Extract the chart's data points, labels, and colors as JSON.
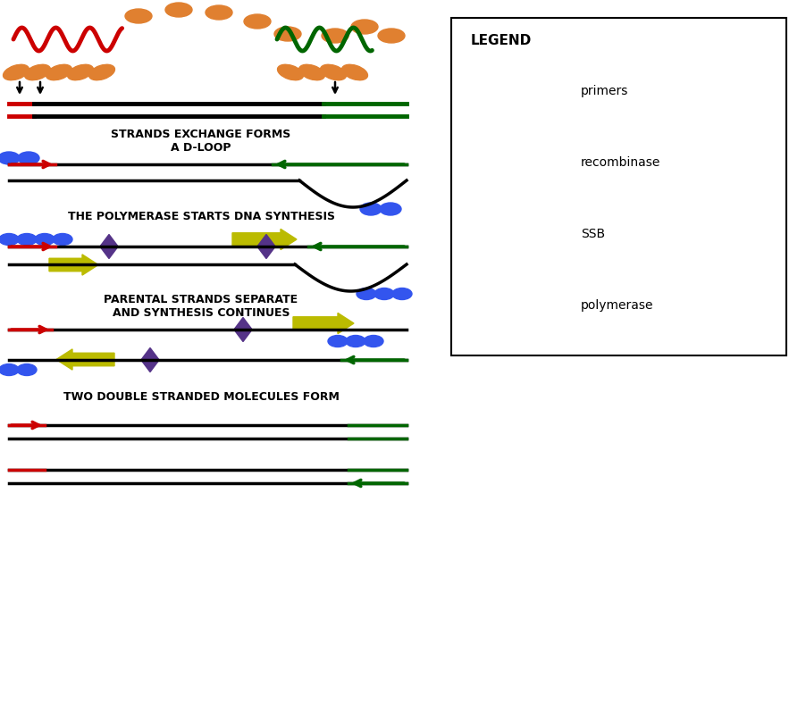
{
  "fig_width": 9.02,
  "fig_height": 7.86,
  "bg_color": "#ffffff",
  "red_color": "#cc0000",
  "green_color": "#006600",
  "black_color": "#000000",
  "orange_color": "#e08030",
  "blue_color": "#3355ee",
  "yellow_color": "#bbbb00",
  "purple_color": "#553388",
  "legend_title": "LEGEND",
  "legend_labels": [
    "primers",
    "recombinase",
    "SSB",
    "polymerase"
  ],
  "title1": "STRANDS EXCHANGE FORMS\nA D-LOOP",
  "title2": "THE POLYMERASE STARTS DNA SYNTHESIS",
  "title3": "PARENTAL STRANDS SEPARATE\nAND SYNTHESIS CONTINUES",
  "title4": "TWO DOUBLE STRANDED MOLECULES FORM"
}
